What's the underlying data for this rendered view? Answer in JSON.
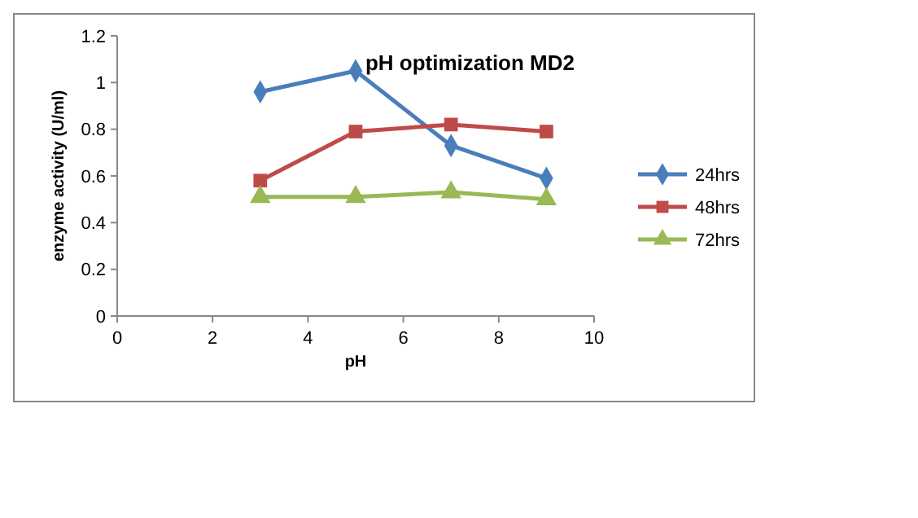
{
  "chart_data": {
    "type": "line",
    "title": "pH optimization MD2",
    "xlabel": "pH",
    "ylabel": "enzyme activity (U/ml)",
    "x": [
      3,
      5,
      7,
      9
    ],
    "series": [
      {
        "name": "24hrs",
        "color": "#4a7ebb",
        "marker": "diamond",
        "values": [
          0.96,
          1.05,
          0.73,
          0.59
        ]
      },
      {
        "name": "48hrs",
        "color": "#be4b48",
        "marker": "square",
        "values": [
          0.58,
          0.79,
          0.82,
          0.79
        ]
      },
      {
        "name": "72hrs",
        "color": "#98b954",
        "marker": "triangle",
        "values": [
          0.51,
          0.51,
          0.53,
          0.5
        ]
      }
    ],
    "xlim": [
      0,
      10
    ],
    "xticks": [
      0,
      2,
      4,
      6,
      8,
      10
    ],
    "ylim": [
      0,
      1.2
    ],
    "yticks": [
      0,
      0.2,
      0.4,
      0.6,
      0.8,
      1,
      1.2
    ],
    "grid": false,
    "legend": "right"
  }
}
